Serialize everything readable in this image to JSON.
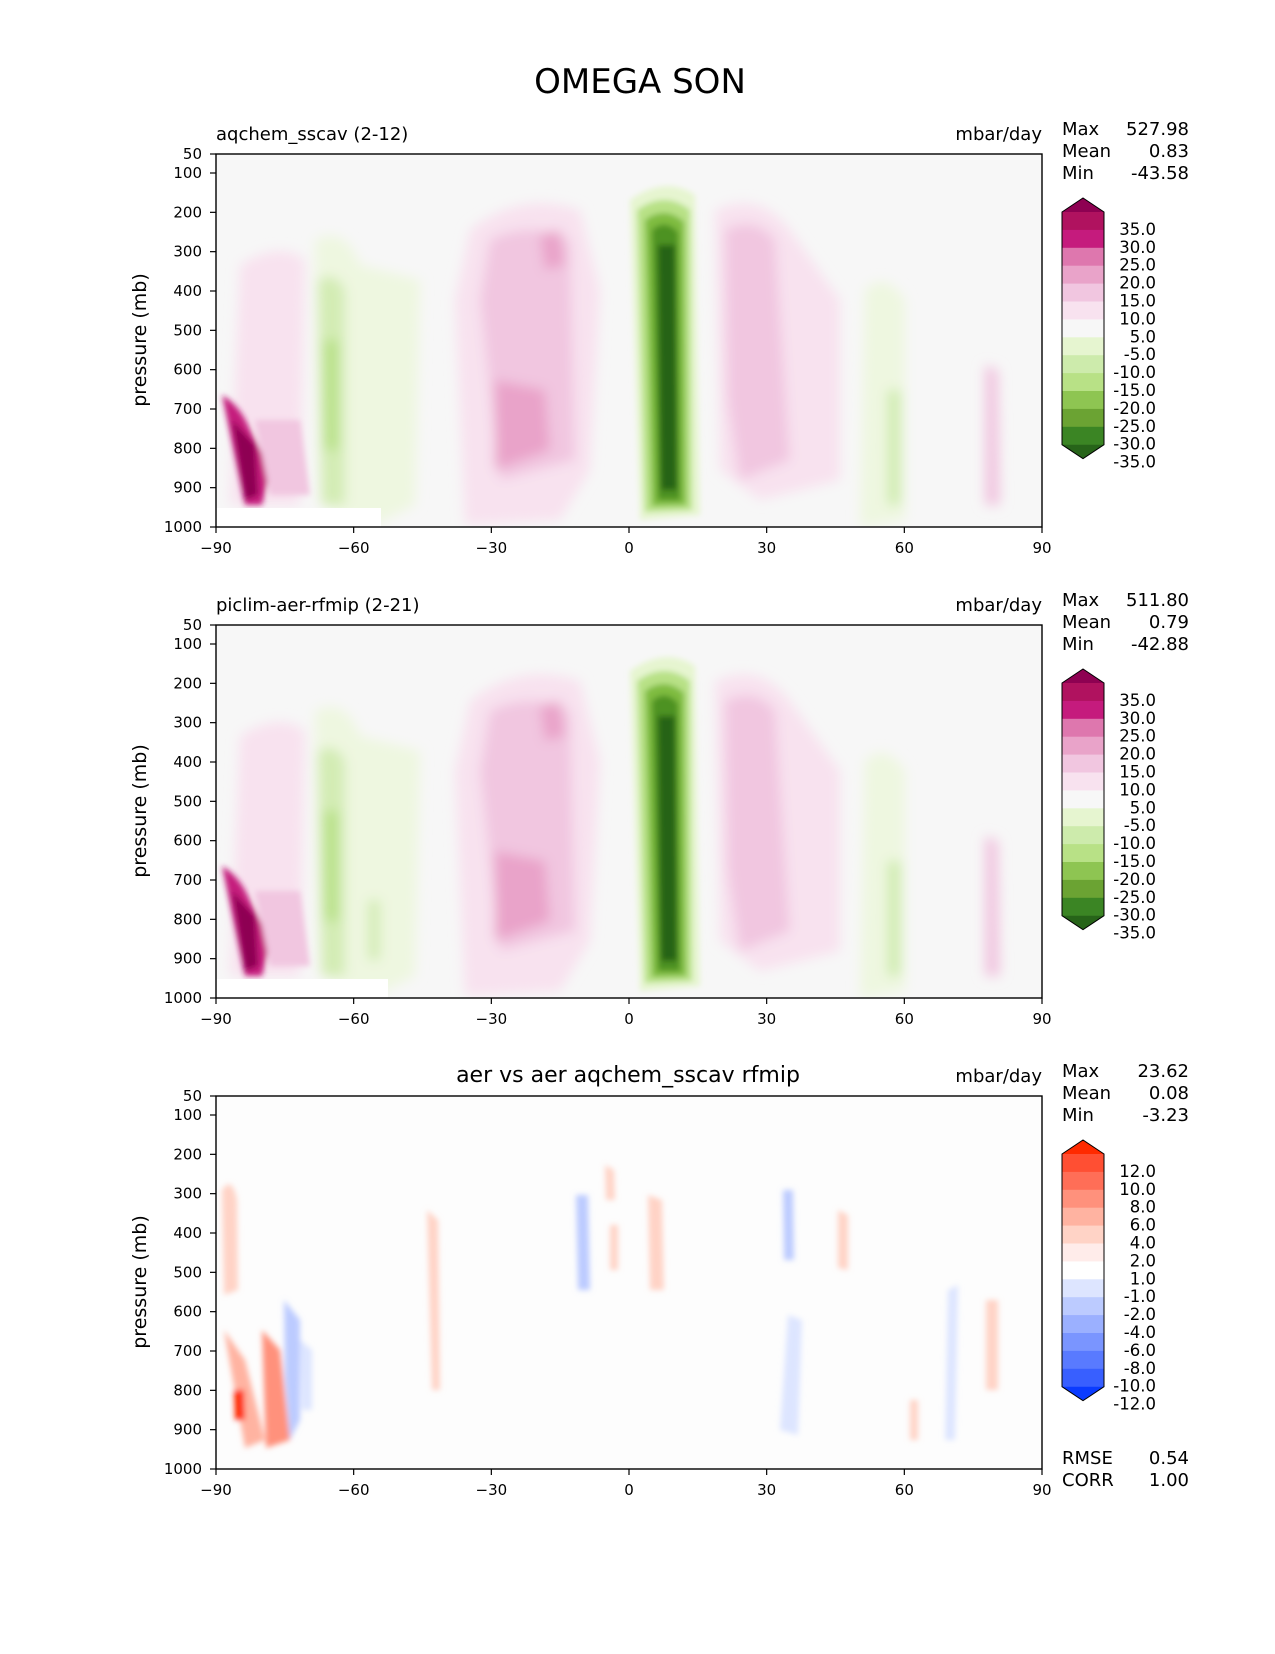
{
  "figure": {
    "title": "OMEGA SON"
  },
  "legend": {
    "stats_labels": {
      "max": "Max",
      "mean": "Mean",
      "min": "Min",
      "rmse": "RMSE",
      "corr": "CORR"
    }
  },
  "chart_data": [
    {
      "type": "heatmap",
      "title": "aqchem_sscav (2-12)",
      "units": "mbar/day",
      "ylabel": "pressure (mb)",
      "xlabel": "",
      "x_ticks": [
        -90,
        -60,
        -30,
        0,
        30,
        60,
        90
      ],
      "y_ticks": [
        50,
        100,
        200,
        300,
        400,
        500,
        600,
        700,
        800,
        900,
        1000
      ],
      "xlim": [
        -90,
        90
      ],
      "ylim": [
        1000,
        50
      ],
      "stats": {
        "max": "527.98",
        "mean": "0.83",
        "min": "-43.58"
      },
      "colorbar": {
        "labels": [
          "35.0",
          "30.0",
          "25.0",
          "20.0",
          "15.0",
          "10.0",
          "5.0",
          "-5.0",
          "-10.0",
          "-15.0",
          "-20.0",
          "-25.0",
          "-30.0",
          "-35.0"
        ],
        "colors": [
          "#8e0152",
          "#b0125f",
          "#c51b7d",
          "#de77ae",
          "#e9a3c9",
          "#f1c6e0",
          "#f8e2ef",
          "#f7f7f7",
          "#e6f5d0",
          "#cdebac",
          "#b8e186",
          "#8ec552",
          "#6ba333",
          "#3b8524",
          "#276419"
        ]
      },
      "features": [
        {
          "lon": -84,
          "p": 820,
          "v": 40
        },
        {
          "lon": -78,
          "p": 450,
          "v": 12
        },
        {
          "lon": -63,
          "p": 520,
          "v": -15
        },
        {
          "lon": -52,
          "p": 600,
          "v": -6
        },
        {
          "lon": -25,
          "p": 550,
          "v": 10
        },
        {
          "lon": -20,
          "p": 780,
          "v": 18
        },
        {
          "lon": 8,
          "p": 560,
          "v": -40
        },
        {
          "lon": 28,
          "p": 520,
          "v": 9
        },
        {
          "lon": 58,
          "p": 700,
          "v": -12
        },
        {
          "lon": 80,
          "p": 780,
          "v": 8
        }
      ]
    },
    {
      "type": "heatmap",
      "title": "piclim-aer-rfmip (2-21)",
      "units": "mbar/day",
      "ylabel": "pressure (mb)",
      "xlabel": "",
      "x_ticks": [
        -90,
        -60,
        -30,
        0,
        30,
        60,
        90
      ],
      "y_ticks": [
        50,
        100,
        200,
        300,
        400,
        500,
        600,
        700,
        800,
        900,
        1000
      ],
      "xlim": [
        -90,
        90
      ],
      "ylim": [
        1000,
        50
      ],
      "stats": {
        "max": "511.80",
        "mean": "0.79",
        "min": "-42.88"
      },
      "colorbar": {
        "labels": [
          "35.0",
          "30.0",
          "25.0",
          "20.0",
          "15.0",
          "10.0",
          "5.0",
          "-5.0",
          "-10.0",
          "-15.0",
          "-20.0",
          "-25.0",
          "-30.0",
          "-35.0"
        ],
        "colors": [
          "#8e0152",
          "#b0125f",
          "#c51b7d",
          "#de77ae",
          "#e9a3c9",
          "#f1c6e0",
          "#f8e2ef",
          "#f7f7f7",
          "#e6f5d0",
          "#cdebac",
          "#b8e186",
          "#8ec552",
          "#6ba333",
          "#3b8524",
          "#276419"
        ]
      },
      "features": [
        {
          "lon": -84,
          "p": 820,
          "v": 38
        },
        {
          "lon": -78,
          "p": 450,
          "v": 11
        },
        {
          "lon": -63,
          "p": 520,
          "v": -15
        },
        {
          "lon": -52,
          "p": 600,
          "v": -6
        },
        {
          "lon": -25,
          "p": 550,
          "v": 10
        },
        {
          "lon": -20,
          "p": 780,
          "v": 17
        },
        {
          "lon": 8,
          "p": 560,
          "v": -40
        },
        {
          "lon": 28,
          "p": 520,
          "v": 9
        },
        {
          "lon": 58,
          "p": 700,
          "v": -12
        },
        {
          "lon": 80,
          "p": 780,
          "v": 8
        }
      ]
    },
    {
      "type": "heatmap",
      "title": "aer vs aer aqchem_sscav rfmip",
      "units": "mbar/day",
      "ylabel": "pressure (mb)",
      "xlabel": "",
      "x_ticks": [
        -90,
        -60,
        -30,
        0,
        30,
        60,
        90
      ],
      "y_ticks": [
        50,
        100,
        200,
        300,
        400,
        500,
        600,
        700,
        800,
        900,
        1000
      ],
      "xlim": [
        -90,
        90
      ],
      "ylim": [
        1000,
        50
      ],
      "stats": {
        "max": "23.62",
        "mean": "0.08",
        "min": "-3.23",
        "rmse": "0.54",
        "corr": "1.00"
      },
      "colorbar": {
        "labels": [
          "12.0",
          "10.0",
          "8.0",
          "6.0",
          "4.0",
          "2.0",
          "1.0",
          "-1.0",
          "-2.0",
          "-4.0",
          "-6.0",
          "-8.0",
          "-10.0",
          "-12.0"
        ],
        "colors": [
          "#ff2a00",
          "#ff4f33",
          "#ff6e57",
          "#ff917c",
          "#ffb3a1",
          "#ffd3c6",
          "#ffecea",
          "#ffffff",
          "#dde5ff",
          "#bccbff",
          "#9bb0ff",
          "#7a95ff",
          "#597aff",
          "#385fff",
          "#0a3bff"
        ]
      },
      "features": [
        {
          "lon": -86,
          "p": 860,
          "v": 12
        },
        {
          "lon": -80,
          "p": 860,
          "v": 5
        },
        {
          "lon": -88,
          "p": 420,
          "v": 2
        },
        {
          "lon": -75,
          "p": 700,
          "v": -2
        },
        {
          "lon": -43,
          "p": 600,
          "v": 1.5
        },
        {
          "lon": -10,
          "p": 420,
          "v": -1.5
        },
        {
          "lon": 7,
          "p": 420,
          "v": 1.5
        },
        {
          "lon": 33,
          "p": 780,
          "v": -1.5
        },
        {
          "lon": 47,
          "p": 420,
          "v": 1.5
        },
        {
          "lon": 70,
          "p": 750,
          "v": -1.5
        },
        {
          "lon": 80,
          "p": 720,
          "v": 1.5
        }
      ]
    }
  ]
}
